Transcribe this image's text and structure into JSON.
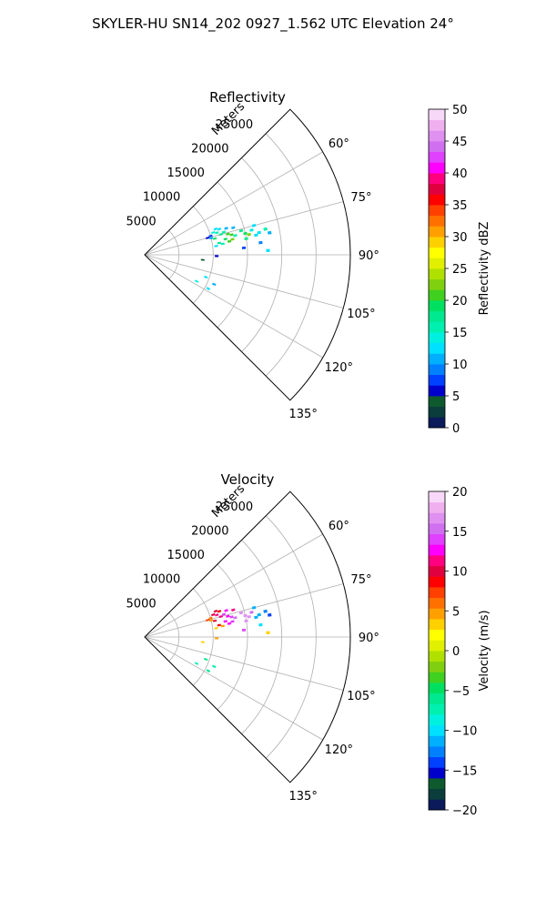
{
  "figure": {
    "suptitle": "SKYLER-HU  SN14_202  0927_1.562 UTC Elevation 24°"
  },
  "chart_data": [
    {
      "type": "polar-sector",
      "title": "Reflectivity",
      "radial_label": "Meters",
      "rlim": [
        0,
        30000
      ],
      "radial_ticks": [
        5000,
        10000,
        15000,
        20000,
        25000
      ],
      "radial_tick_labels": [
        "5000",
        "10000",
        "15000",
        "20000",
        "25000"
      ],
      "azimuth_range_deg": [
        45,
        135
      ],
      "azimuth_ticks": [
        60,
        75,
        90,
        105,
        120,
        135
      ],
      "azimuth_tick_labels": [
        "60°",
        "75°",
        "90°",
        "105°",
        "120°",
        "135°"
      ],
      "grid": true,
      "colorbar": {
        "label": "Reflectivity dBZ",
        "min": 0,
        "max": 50,
        "ticks": [
          0,
          5,
          10,
          15,
          20,
          25,
          30,
          35,
          40,
          45,
          50
        ],
        "tick_labels": [
          "0",
          "5",
          "10",
          "15",
          "20",
          "25",
          "30",
          "35",
          "40",
          "45",
          "50"
        ],
        "colors": [
          "#0a1a5a",
          "#0b3d3d",
          "#0e5a2e",
          "#0000cc",
          "#0040ff",
          "#0080ff",
          "#00b0ff",
          "#00e0ff",
          "#00f0e0",
          "#00f0b0",
          "#00e890",
          "#00e060",
          "#40d020",
          "#80d010",
          "#b0e000",
          "#e0f000",
          "#ffff00",
          "#ffd000",
          "#ffa000",
          "#ff7000",
          "#ff4000",
          "#ff0000",
          "#e00040",
          "#ff0080",
          "#ff00ff",
          "#e040ff",
          "#d070f0",
          "#e090f0",
          "#f0b0f0",
          "#f8d8f8"
        ]
      },
      "cells": [
        {
          "az": 70,
          "r": 11000,
          "v": 13
        },
        {
          "az": 71,
          "r": 11500,
          "v": 12
        },
        {
          "az": 72,
          "r": 10500,
          "v": 14
        },
        {
          "az": 73,
          "r": 11000,
          "v": 16
        },
        {
          "az": 74,
          "r": 10000,
          "v": 8
        },
        {
          "az": 72,
          "r": 12500,
          "v": 11
        },
        {
          "az": 74,
          "r": 12000,
          "v": 15
        },
        {
          "az": 75,
          "r": 11500,
          "v": 18
        },
        {
          "az": 76,
          "r": 12500,
          "v": 21
        },
        {
          "az": 77,
          "r": 13000,
          "v": 20
        },
        {
          "az": 78,
          "r": 13500,
          "v": 16
        },
        {
          "az": 76,
          "r": 14500,
          "v": 17
        },
        {
          "az": 78,
          "r": 15000,
          "v": 19
        },
        {
          "az": 79,
          "r": 15500,
          "v": 22
        },
        {
          "az": 77,
          "r": 16000,
          "v": 14
        },
        {
          "az": 79,
          "r": 17000,
          "v": 13
        },
        {
          "az": 80,
          "r": 16500,
          "v": 12
        },
        {
          "az": 78,
          "r": 18000,
          "v": 15
        },
        {
          "az": 80,
          "r": 18500,
          "v": 11
        },
        {
          "az": 81,
          "r": 15000,
          "v": 18
        },
        {
          "az": 75,
          "r": 9500,
          "v": 6
        },
        {
          "az": 76,
          "r": 10000,
          "v": 10
        },
        {
          "az": 79,
          "r": 12000,
          "v": 19
        },
        {
          "az": 80,
          "r": 13000,
          "v": 22
        },
        {
          "az": 81,
          "r": 12500,
          "v": 20
        },
        {
          "az": 77,
          "r": 10500,
          "v": 19
        },
        {
          "az": 81,
          "r": 11000,
          "v": 17
        },
        {
          "az": 82,
          "r": 11500,
          "v": 15
        },
        {
          "az": 83,
          "r": 10500,
          "v": 13
        },
        {
          "az": 73,
          "r": 13500,
          "v": 10
        },
        {
          "az": 75,
          "r": 16500,
          "v": 12
        },
        {
          "az": 84,
          "r": 17000,
          "v": 9
        },
        {
          "az": 86,
          "r": 14500,
          "v": 8
        },
        {
          "az": 88,
          "r": 18000,
          "v": 13
        },
        {
          "az": 91,
          "r": 10500,
          "v": 6
        },
        {
          "az": 95,
          "r": 8500,
          "v": 4
        },
        {
          "az": 110,
          "r": 9500,
          "v": 12
        },
        {
          "az": 113,
          "r": 11000,
          "v": 11
        },
        {
          "az": 117,
          "r": 8500,
          "v": 14
        },
        {
          "az": 118,
          "r": 10500,
          "v": 12
        }
      ]
    },
    {
      "type": "polar-sector",
      "title": "Velocity",
      "radial_label": "Meters",
      "rlim": [
        0,
        30000
      ],
      "radial_ticks": [
        5000,
        10000,
        15000,
        20000,
        25000
      ],
      "radial_tick_labels": [
        "5000",
        "10000",
        "15000",
        "20000",
        "25000"
      ],
      "azimuth_range_deg": [
        45,
        135
      ],
      "azimuth_ticks": [
        60,
        75,
        90,
        105,
        120,
        135
      ],
      "azimuth_tick_labels": [
        "60°",
        "75°",
        "90°",
        "105°",
        "120°",
        "135°"
      ],
      "grid": true,
      "colorbar": {
        "label": "Velocity (m/s)",
        "min": -20,
        "max": 20,
        "ticks": [
          -20,
          -15,
          -10,
          -5,
          0,
          5,
          10,
          15,
          20
        ],
        "tick_labels": [
          "−20",
          "−15",
          "−10",
          "−5",
          "0",
          "5",
          "10",
          "15",
          "20"
        ],
        "colors": [
          "#0a1a5a",
          "#0b3d3d",
          "#0e5a2e",
          "#0000cc",
          "#0040ff",
          "#0080ff",
          "#00b0ff",
          "#00e0ff",
          "#00f0e0",
          "#00f0b0",
          "#00e890",
          "#00e060",
          "#40d020",
          "#80d010",
          "#b0e000",
          "#e0f000",
          "#ffff00",
          "#ffd000",
          "#ffa000",
          "#ff7000",
          "#ff4000",
          "#ff0000",
          "#e00040",
          "#ff0080",
          "#ff00ff",
          "#e040ff",
          "#d070f0",
          "#e090f0",
          "#f0b0f0",
          "#f8d8f8"
        ]
      },
      "cells": [
        {
          "az": 70,
          "r": 11000,
          "v": 10
        },
        {
          "az": 71,
          "r": 11500,
          "v": 9
        },
        {
          "az": 72,
          "r": 10500,
          "v": 10
        },
        {
          "az": 73,
          "r": 11000,
          "v": 11
        },
        {
          "az": 74,
          "r": 10000,
          "v": 6
        },
        {
          "az": 72,
          "r": 12500,
          "v": 13
        },
        {
          "az": 74,
          "r": 12000,
          "v": 14
        },
        {
          "az": 75,
          "r": 11500,
          "v": 11
        },
        {
          "az": 76,
          "r": 12500,
          "v": 13
        },
        {
          "az": 77,
          "r": 13000,
          "v": 14
        },
        {
          "az": 78,
          "r": 13500,
          "v": 15
        },
        {
          "az": 76,
          "r": 14500,
          "v": 16
        },
        {
          "az": 78,
          "r": 15000,
          "v": 17
        },
        {
          "az": 79,
          "r": 15500,
          "v": 16
        },
        {
          "az": 77,
          "r": 16000,
          "v": 15
        },
        {
          "az": 79,
          "r": 17000,
          "v": -12
        },
        {
          "az": 80,
          "r": 16500,
          "v": -11
        },
        {
          "az": 78,
          "r": 18000,
          "v": -13
        },
        {
          "az": 80,
          "r": 18500,
          "v": -14
        },
        {
          "az": 81,
          "r": 15000,
          "v": 16
        },
        {
          "az": 75,
          "r": 9500,
          "v": 7
        },
        {
          "az": 76,
          "r": 10000,
          "v": 5
        },
        {
          "az": 79,
          "r": 12000,
          "v": 12
        },
        {
          "az": 80,
          "r": 13000,
          "v": 14
        },
        {
          "az": 81,
          "r": 12500,
          "v": 13
        },
        {
          "az": 77,
          "r": 10500,
          "v": 10
        },
        {
          "az": 81,
          "r": 11000,
          "v": 9
        },
        {
          "az": 82,
          "r": 11500,
          "v": 4
        },
        {
          "az": 83,
          "r": 10500,
          "v": 3
        },
        {
          "az": 73,
          "r": 13500,
          "v": 11
        },
        {
          "az": 75,
          "r": 16500,
          "v": -12
        },
        {
          "az": 84,
          "r": 17000,
          "v": -10
        },
        {
          "az": 86,
          "r": 14500,
          "v": 14
        },
        {
          "az": 88,
          "r": 18000,
          "v": 3
        },
        {
          "az": 91,
          "r": 10500,
          "v": 4
        },
        {
          "az": 95,
          "r": 8500,
          "v": 3
        },
        {
          "az": 110,
          "r": 9500,
          "v": -6
        },
        {
          "az": 113,
          "r": 11000,
          "v": -7
        },
        {
          "az": 117,
          "r": 8500,
          "v": -8
        },
        {
          "az": 118,
          "r": 10500,
          "v": -6
        }
      ]
    }
  ]
}
